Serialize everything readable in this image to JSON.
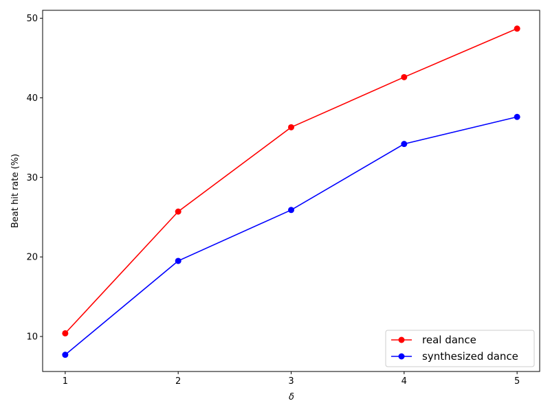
{
  "chart_data": {
    "type": "line",
    "title": "",
    "xlabel": "δ",
    "ylabel": "Beat hit rate (%)",
    "x": [
      1,
      2,
      3,
      4,
      5
    ],
    "xticks": [
      "1",
      "2",
      "3",
      "4",
      "5"
    ],
    "yticks": [
      "10",
      "20",
      "30",
      "40",
      "50"
    ],
    "xlim": [
      0.8,
      5.2
    ],
    "ylim": [
      5.6,
      51.0
    ],
    "grid": false,
    "legend_position": "bottom-right",
    "series": [
      {
        "name": "real dance",
        "color": "#ff0000",
        "marker": "circle",
        "values": [
          10.4,
          25.7,
          36.3,
          42.6,
          48.7
        ]
      },
      {
        "name": "synthesized dance",
        "color": "#0000ff",
        "marker": "circle",
        "values": [
          7.7,
          19.5,
          25.9,
          34.2,
          37.6
        ]
      }
    ]
  }
}
